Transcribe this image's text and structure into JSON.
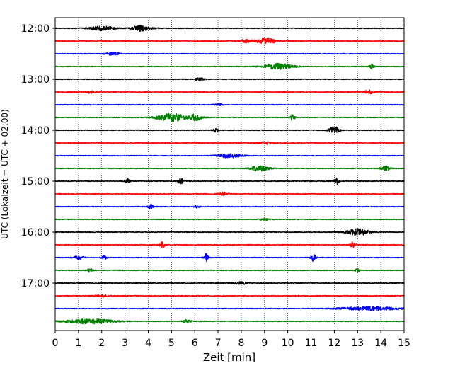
{
  "chart_data": {
    "type": "line",
    "subtype": "helicorder",
    "xlabel": "Zeit  [min]",
    "ylabel": "UTC (Lokalzeit = UTC + 02:00)",
    "xlim": [
      0,
      15
    ],
    "x_ticks": [
      "0",
      "1",
      "2",
      "3",
      "4",
      "5",
      "6",
      "7",
      "8",
      "9",
      "10",
      "11",
      "12",
      "13",
      "14",
      "15"
    ],
    "y_tick_labels": [
      "12:00",
      "13:00",
      "14:00",
      "15:00",
      "16:00",
      "17:00"
    ],
    "rows_per_hour": 4,
    "start_time": "12:00",
    "end_time": "18:00",
    "trace_color_cycle": [
      "#000000",
      "#ff0000",
      "#0000ff",
      "#008000"
    ],
    "grid": "vertical dotted lines at each minute",
    "rows": [
      {
        "start": "12:00",
        "color": "#000000",
        "events": [
          [
            2.0,
            0.7,
            0.5
          ],
          [
            3.7,
            0.9,
            0.4
          ]
        ]
      },
      {
        "start": "12:15",
        "color": "#ff0000",
        "events": [
          [
            9.1,
            1.0,
            0.4
          ],
          [
            8.2,
            0.5,
            0.3
          ]
        ]
      },
      {
        "start": "12:30",
        "color": "#0000ff",
        "events": [
          [
            2.5,
            0.4,
            0.3
          ]
        ]
      },
      {
        "start": "12:45",
        "color": "#008000",
        "events": [
          [
            9.6,
            0.9,
            0.6
          ],
          [
            13.6,
            0.7,
            0.1
          ]
        ]
      },
      {
        "start": "13:00",
        "color": "#000000",
        "events": [
          [
            6.2,
            0.4,
            0.2
          ]
        ]
      },
      {
        "start": "13:15",
        "color": "#ff0000",
        "events": [
          [
            1.5,
            0.4,
            0.2
          ],
          [
            13.5,
            0.6,
            0.2
          ]
        ]
      },
      {
        "start": "13:30",
        "color": "#0000ff",
        "events": [
          [
            7.0,
            0.3,
            0.2
          ]
        ]
      },
      {
        "start": "13:45",
        "color": "#008000",
        "events": [
          [
            5.0,
            1.3,
            0.6
          ],
          [
            6.0,
            0.9,
            0.3
          ],
          [
            10.2,
            1.0,
            0.1
          ]
        ]
      },
      {
        "start": "14:00",
        "color": "#000000",
        "events": [
          [
            6.9,
            0.7,
            0.1
          ],
          [
            12.0,
            1.2,
            0.2
          ]
        ]
      },
      {
        "start": "14:15",
        "color": "#ff0000",
        "events": [
          [
            9.0,
            0.4,
            0.3
          ]
        ]
      },
      {
        "start": "14:30",
        "color": "#0000ff",
        "events": [
          [
            7.5,
            0.6,
            0.5
          ]
        ]
      },
      {
        "start": "14:45",
        "color": "#008000",
        "events": [
          [
            8.8,
            0.8,
            0.4
          ],
          [
            14.2,
            0.7,
            0.2
          ]
        ]
      },
      {
        "start": "15:00",
        "color": "#000000",
        "events": [
          [
            3.1,
            0.9,
            0.1
          ],
          [
            5.4,
            0.9,
            0.1
          ],
          [
            12.1,
            1.0,
            0.1
          ]
        ]
      },
      {
        "start": "15:15",
        "color": "#ff0000",
        "events": [
          [
            7.2,
            0.4,
            0.2
          ]
        ]
      },
      {
        "start": "15:30",
        "color": "#0000ff",
        "events": [
          [
            4.1,
            0.8,
            0.1
          ],
          [
            6.1,
            0.6,
            0.1
          ]
        ]
      },
      {
        "start": "15:45",
        "color": "#008000",
        "events": [
          [
            9.0,
            0.3,
            0.2
          ]
        ]
      },
      {
        "start": "16:00",
        "color": "#000000",
        "events": [
          [
            13.0,
            1.0,
            0.5
          ]
        ]
      },
      {
        "start": "16:15",
        "color": "#ff0000",
        "events": [
          [
            4.6,
            1.2,
            0.1
          ],
          [
            12.8,
            1.1,
            0.1
          ]
        ]
      },
      {
        "start": "16:30",
        "color": "#0000ff",
        "events": [
          [
            1.0,
            0.6,
            0.2
          ],
          [
            2.1,
            0.6,
            0.1
          ],
          [
            6.5,
            1.2,
            0.1
          ],
          [
            11.1,
            1.1,
            0.1
          ]
        ]
      },
      {
        "start": "16:45",
        "color": "#008000",
        "events": [
          [
            1.5,
            0.6,
            0.1
          ],
          [
            13.0,
            0.5,
            0.1
          ]
        ]
      },
      {
        "start": "17:00",
        "color": "#000000",
        "events": [
          [
            8.0,
            0.4,
            0.3
          ]
        ]
      },
      {
        "start": "17:15",
        "color": "#ff0000",
        "events": [
          [
            2.0,
            0.3,
            0.3
          ]
        ]
      },
      {
        "start": "17:30",
        "color": "#0000ff",
        "events": [
          [
            13.5,
            0.6,
            1.2
          ]
        ]
      },
      {
        "start": "17:45",
        "color": "#008000",
        "events": [
          [
            1.5,
            0.7,
            1.0
          ],
          [
            5.7,
            0.5,
            0.2
          ]
        ]
      }
    ]
  }
}
